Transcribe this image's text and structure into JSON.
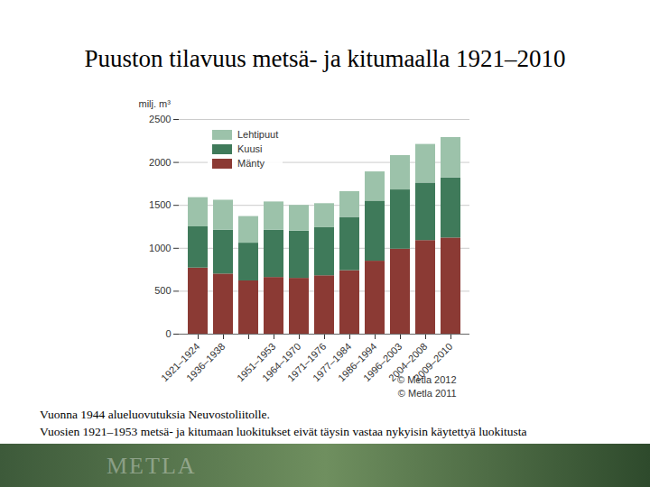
{
  "chart_data": {
    "type": "bar",
    "title": "Puuston tilavuus metsä- ja kitumaalla 1921–2010",
    "y_label": "milj. m³",
    "categories": [
      "1921–1924",
      "1936–1938",
      null,
      "1951–1953",
      "1964–1970",
      "1971–1976",
      "1977–1984",
      "1986–1994",
      "1996–2003",
      "2004–2008",
      "2009–2010"
    ],
    "series": [
      {
        "name": "Mänty",
        "color": "#8b3a34",
        "values": [
          770,
          700,
          620,
          660,
          650,
          680,
          740,
          850,
          990,
          1090,
          1120
        ]
      },
      {
        "name": "Kuusi",
        "color": "#3f7a5a",
        "values": [
          480,
          510,
          440,
          550,
          550,
          560,
          620,
          700,
          690,
          670,
          700
        ]
      },
      {
        "name": "Lehtipuut",
        "color": "#9cc2aa",
        "values": [
          340,
          350,
          310,
          330,
          300,
          280,
          300,
          340,
          400,
          450,
          470
        ]
      }
    ],
    "ylim": [
      0,
      2500
    ],
    "yticks": [
      0,
      500,
      1000,
      1500,
      2000,
      2500
    ],
    "stacked": true,
    "grid": true,
    "legend": "top-left",
    "annotations": [
      "© Metla 2012",
      "© Metla 2011"
    ],
    "caption": [
      "Vuonna 1944 alueluovutuksia Neuvostoliitolle.",
      "Vuosien 1921–1953 metsä- ja kitumaan luokitukset eivät täysin vastaa nykyisin käytettyä luokitusta"
    ],
    "footer": "METLA"
  }
}
